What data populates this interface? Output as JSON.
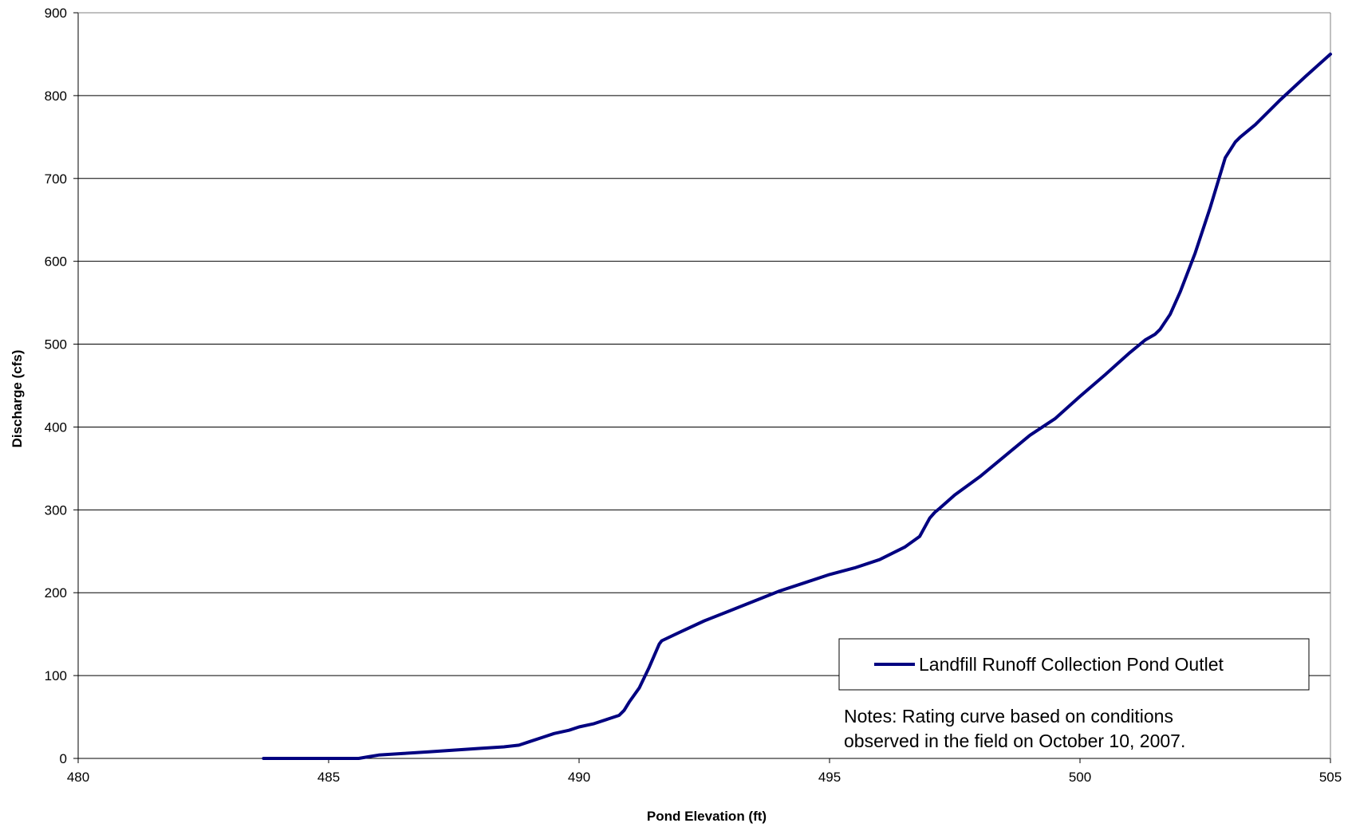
{
  "chart_data": {
    "type": "line",
    "title": "",
    "xlabel": "Pond Elevation (ft)",
    "ylabel": "Discharge (cfs)",
    "xlim": [
      480,
      505
    ],
    "ylim": [
      0,
      900
    ],
    "x_ticks": [
      480,
      485,
      490,
      495,
      500,
      505
    ],
    "y_ticks": [
      0,
      100,
      200,
      300,
      400,
      500,
      600,
      700,
      800,
      900
    ],
    "grid": "horizontal",
    "legend_position": "lower-right",
    "series": [
      {
        "name": "Landfill Runoff Collection Pond Outlet",
        "color": "#000080",
        "x": [
          483.7,
          484.5,
          485.0,
          485.6,
          485.8,
          486.0,
          486.5,
          487.0,
          487.5,
          488.0,
          488.5,
          488.8,
          489.0,
          489.3,
          489.5,
          489.8,
          490.0,
          490.3,
          490.6,
          490.8,
          490.9,
          491.0,
          491.2,
          491.4,
          491.6,
          491.65,
          492.0,
          492.5,
          493.0,
          493.5,
          494.0,
          494.5,
          495.0,
          495.5,
          496.0,
          496.5,
          496.8,
          497.0,
          497.1,
          497.2,
          497.5,
          498.0,
          498.5,
          499.0,
          499.5,
          500.0,
          500.5,
          501.0,
          501.3,
          501.5,
          501.6,
          501.8,
          502.0,
          502.3,
          502.6,
          502.9,
          503.1,
          503.2,
          503.5,
          504.0,
          504.5,
          505.0
        ],
        "y": [
          0,
          0,
          0,
          0,
          2,
          4,
          6,
          8,
          10,
          12,
          14,
          16,
          20,
          26,
          30,
          34,
          38,
          42,
          48,
          52,
          58,
          68,
          85,
          110,
          138,
          142,
          152,
          166,
          178,
          190,
          202,
          212,
          222,
          230,
          240,
          255,
          268,
          290,
          297,
          302,
          318,
          340,
          365,
          390,
          410,
          437,
          463,
          490,
          505,
          512,
          518,
          536,
          563,
          610,
          665,
          725,
          744,
          750,
          765,
          795,
          823,
          850
        ]
      }
    ],
    "annotations": [
      "Notes: Rating curve based on conditions",
      "observed in the field on October 10, 2007."
    ]
  }
}
